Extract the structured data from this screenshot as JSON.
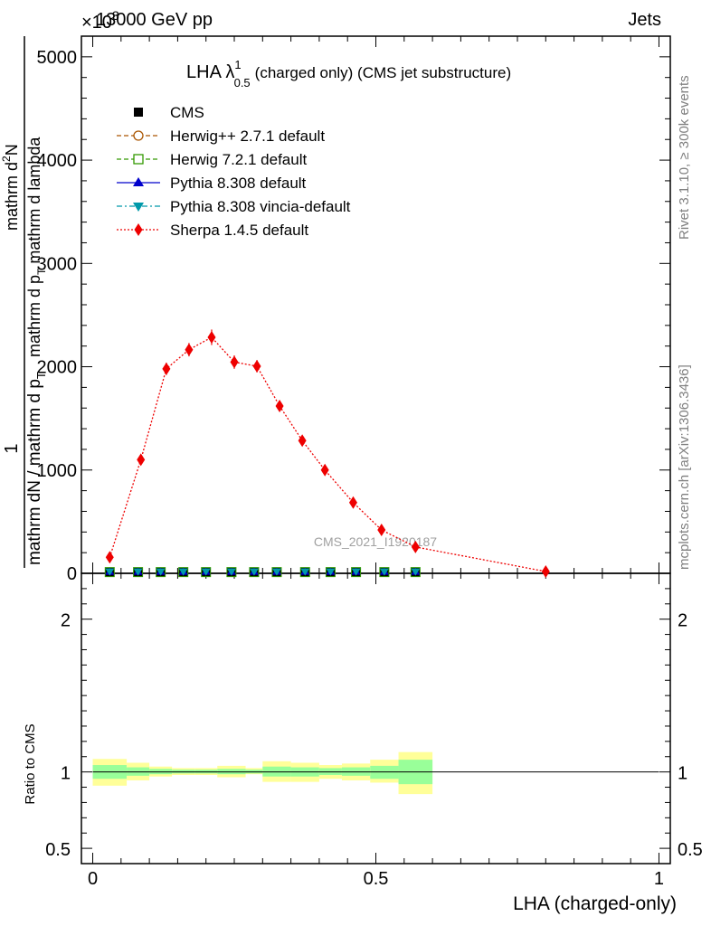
{
  "header": {
    "beam_label": "13000 GeV pp",
    "process_label": "Jets",
    "y_exponent_label": "×10",
    "y_exponent_sup": "3"
  },
  "side_labels": {
    "rivet": "Rivet 3.1.10, ≥ 300k events",
    "mcplots": "mcplots.cern.ch [arXiv:1306.3436]"
  },
  "watermark": "CMS_2021_I1920187",
  "chart_data": {
    "type": "scatter",
    "title_main": "LHA λ",
    "title_sup": "1",
    "title_sub": "0.5",
    "title_rest": "(charged only) (CMS jet substructure)",
    "xlabel": "LHA (charged-only)",
    "ylabel": "1 / mathrm dN / mathrm d p_T mathrm d^2N / mathrm d p_T mathrm d lambda",
    "ylabel_parts": {
      "numer": "1",
      "denom": "mathrm dN / mathrm d p",
      "denom_sub": "T",
      "frac2_numer": "mathrm d",
      "frac2_numer_sup": "2",
      "frac2_numer_rest": "N",
      "frac2_denom": "mathrm d p",
      "frac2_denom_sub": "T",
      "frac2_denom_rest": " mathrm d lambda"
    },
    "ratio_ylabel": "Ratio to CMS",
    "xlim": [
      -0.02,
      1.02
    ],
    "ylim": [
      0,
      5200
    ],
    "ratio_ylim": [
      0.4,
      2.3
    ],
    "x_ticks": [
      {
        "value": 0,
        "label": "0"
      },
      {
        "value": 0.5,
        "label": "0.5"
      },
      {
        "value": 1,
        "label": "1"
      }
    ],
    "y_ticks": [
      {
        "value": 0,
        "label": "0"
      },
      {
        "value": 1000,
        "label": "1000"
      },
      {
        "value": 2000,
        "label": "2000"
      },
      {
        "value": 3000,
        "label": "3000"
      },
      {
        "value": 4000,
        "label": "4000"
      },
      {
        "value": 5000,
        "label": "5000"
      }
    ],
    "ratio_ticks": [
      {
        "value": 0.5,
        "label": "0.5"
      },
      {
        "value": 1,
        "label": "1"
      },
      {
        "value": 2,
        "label": "2"
      }
    ],
    "legend": [
      {
        "name": "CMS",
        "color": "#000000",
        "marker": "square",
        "line": "none"
      },
      {
        "name": "Herwig++ 2.7.1 default",
        "color": "#aa5500",
        "marker": "open-circle",
        "line": "dashed"
      },
      {
        "name": "Herwig 7.2.1 default",
        "color": "#339900",
        "marker": "open-square",
        "line": "dashed"
      },
      {
        "name": "Pythia 8.308 default",
        "color": "#0000cc",
        "marker": "triangle",
        "line": "solid"
      },
      {
        "name": "Pythia 8.308 vincia-default",
        "color": "#0099aa",
        "marker": "triangle-down",
        "line": "dashdot"
      },
      {
        "name": "Sherpa 1.4.5 default",
        "color": "#ee0000",
        "marker": "diamond",
        "line": "dotted"
      }
    ],
    "bins": [
      0,
      0.06,
      0.1,
      0.14,
      0.18,
      0.22,
      0.27,
      0.3,
      0.35,
      0.4,
      0.44,
      0.49,
      0.54,
      0.6,
      1.0
    ],
    "near_zero_series_x": [
      0.03,
      0.08,
      0.12,
      0.16,
      0.2,
      0.245,
      0.285,
      0.325,
      0.375,
      0.42,
      0.465,
      0.515,
      0.57
    ],
    "near_zero_series_y": [
      12,
      12,
      12,
      12,
      12,
      12,
      12,
      12,
      12,
      12,
      12,
      12,
      12
    ],
    "sherpa": {
      "name": "Sherpa 1.4.5 default",
      "color": "#ee0000",
      "x": [
        0.03,
        0.085,
        0.13,
        0.17,
        0.21,
        0.25,
        0.29,
        0.33,
        0.37,
        0.41,
        0.46,
        0.51,
        0.57,
        0.8
      ],
      "y": [
        155,
        1100,
        1980,
        2165,
        2285,
        2045,
        2005,
        1620,
        1285,
        1000,
        685,
        420,
        255,
        18
      ],
      "err": [
        40,
        50,
        60,
        65,
        75,
        65,
        60,
        50,
        45,
        40,
        35,
        30,
        25,
        10
      ]
    },
    "ratio_bands": {
      "inner_color": "#99ff99",
      "outer_color": "#ffff99",
      "inner_lo": [
        0.955,
        0.975,
        0.985,
        0.99,
        0.99,
        0.985,
        0.99,
        0.97,
        0.97,
        0.98,
        0.975,
        0.955,
        0.92
      ],
      "inner_hi": [
        1.045,
        1.03,
        1.02,
        1.015,
        1.015,
        1.02,
        1.015,
        1.035,
        1.03,
        1.025,
        1.03,
        1.04,
        1.08
      ],
      "outer_lo": [
        0.91,
        0.945,
        0.97,
        0.98,
        0.98,
        0.965,
        0.985,
        0.935,
        0.935,
        0.955,
        0.945,
        0.93,
        0.855
      ],
      "outer_hi": [
        1.085,
        1.06,
        1.035,
        1.025,
        1.025,
        1.04,
        1.025,
        1.07,
        1.06,
        1.045,
        1.055,
        1.08,
        1.13
      ]
    }
  }
}
